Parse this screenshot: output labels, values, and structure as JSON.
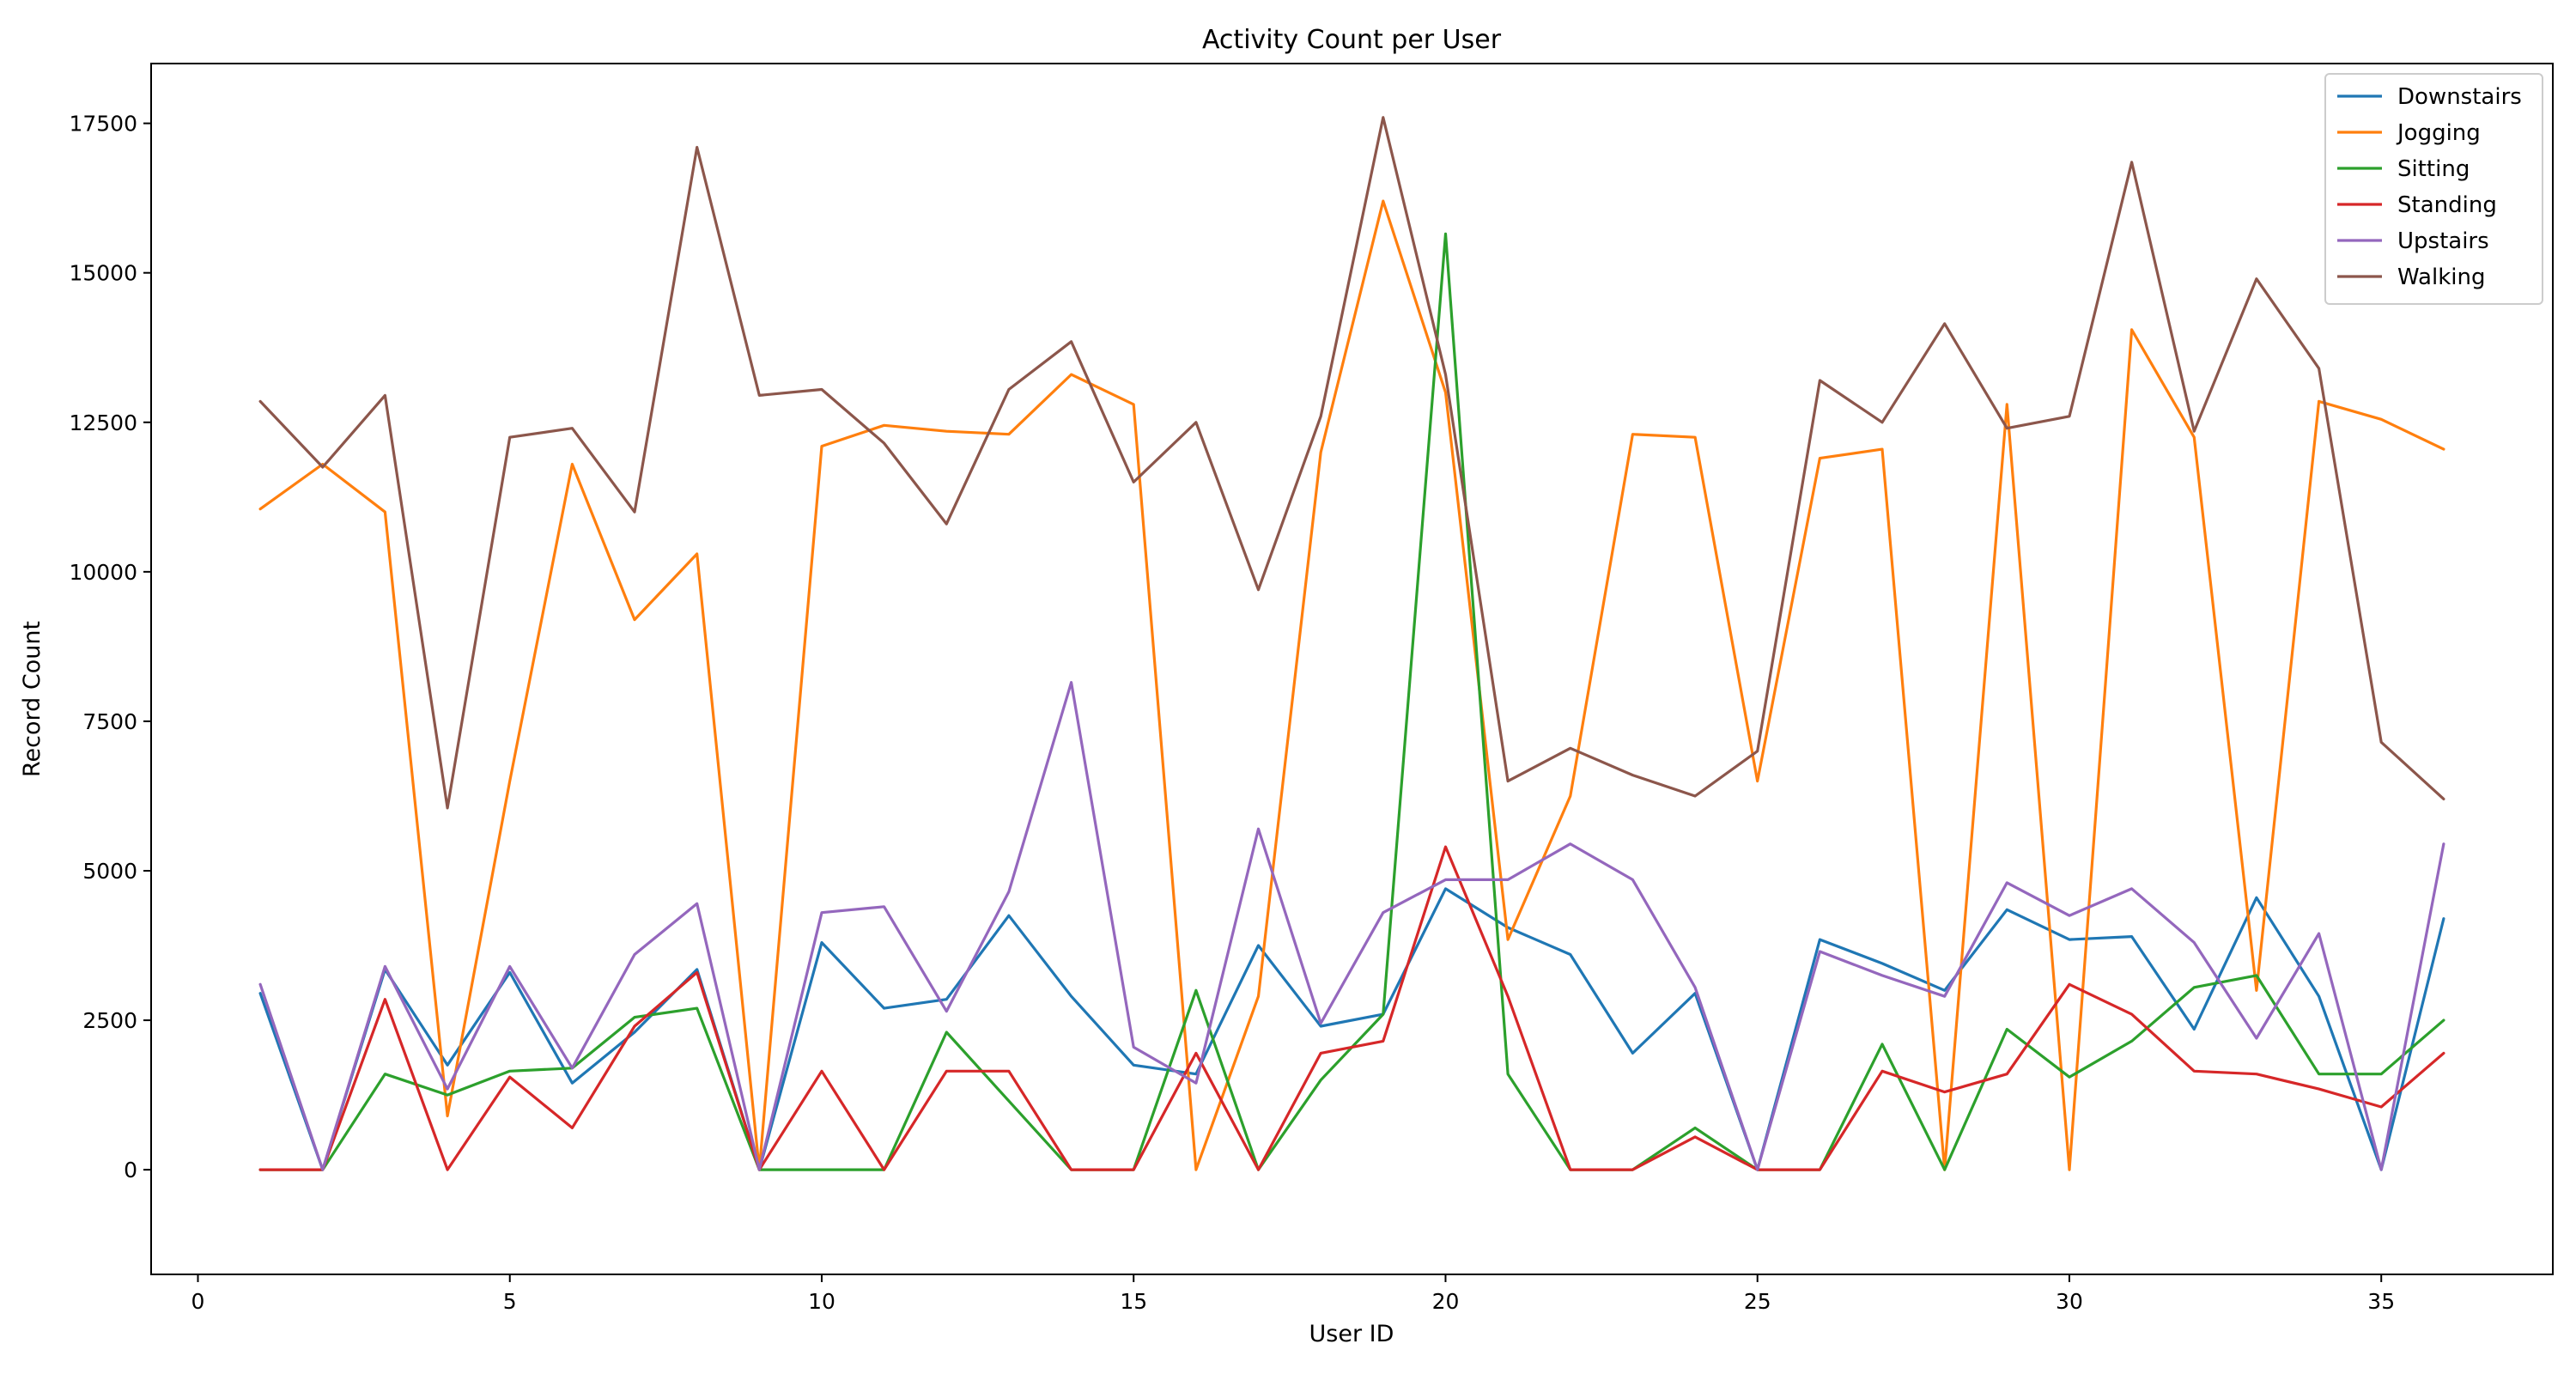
{
  "chart_data": {
    "type": "line",
    "title": "Activity Count per User",
    "xlabel": "User ID",
    "ylabel": "Record Count",
    "xlim": [
      -0.75,
      37.75
    ],
    "ylim": [
      -1750,
      18500
    ],
    "xticks": [
      0,
      5,
      10,
      15,
      20,
      25,
      30,
      35
    ],
    "yticks": [
      0,
      2500,
      5000,
      7500,
      10000,
      12500,
      15000,
      17500
    ],
    "grid": false,
    "legend_position": "top-right",
    "x": [
      1,
      2,
      3,
      4,
      5,
      6,
      7,
      8,
      9,
      10,
      11,
      12,
      13,
      14,
      15,
      16,
      17,
      18,
      19,
      20,
      21,
      22,
      23,
      24,
      25,
      26,
      27,
      28,
      29,
      30,
      31,
      32,
      33,
      34,
      35,
      36
    ],
    "series": [
      {
        "name": "Downstairs",
        "color": "#1f77b4",
        "values": [
          2950,
          0,
          3350,
          1750,
          3300,
          1450,
          2300,
          3350,
          0,
          3800,
          2700,
          2850,
          4250,
          2900,
          1750,
          1600,
          3750,
          2400,
          2600,
          4700,
          4050,
          3600,
          1950,
          2950,
          0,
          3850,
          3450,
          3000,
          4350,
          3850,
          3900,
          2350,
          4550,
          2900,
          0,
          4200
        ]
      },
      {
        "name": "Jogging",
        "color": "#ff7f0e",
        "values": [
          11050,
          11800,
          11000,
          900,
          6500,
          11800,
          9200,
          10300,
          0,
          12100,
          12450,
          12350,
          12300,
          13300,
          12800,
          0,
          2900,
          12000,
          16200,
          13000,
          3850,
          6250,
          12300,
          12250,
          6500,
          11900,
          12050,
          0,
          12800,
          0,
          14050,
          12250,
          3000,
          12850,
          12550,
          12050
        ]
      },
      {
        "name": "Sitting",
        "color": "#2ca02c",
        "values": [
          0,
          0,
          1600,
          1250,
          1650,
          1700,
          2550,
          2700,
          0,
          0,
          0,
          2300,
          1150,
          0,
          0,
          3000,
          0,
          1500,
          2600,
          15650,
          1600,
          0,
          0,
          700,
          0,
          0,
          2100,
          0,
          2350,
          1550,
          2150,
          3050,
          3250,
          1600,
          1600,
          2500
        ]
      },
      {
        "name": "Standing",
        "color": "#d62728",
        "values": [
          0,
          0,
          2850,
          0,
          1550,
          700,
          2400,
          3300,
          0,
          1650,
          0,
          1650,
          1650,
          0,
          0,
          1950,
          0,
          1950,
          2150,
          5400,
          2900,
          0,
          0,
          550,
          0,
          0,
          1650,
          1300,
          1600,
          3100,
          2600,
          1650,
          1600,
          1350,
          1050,
          1950
        ]
      },
      {
        "name": "Upstairs",
        "color": "#9467bd",
        "values": [
          3100,
          0,
          3400,
          1350,
          3400,
          1700,
          3600,
          4450,
          0,
          4300,
          4400,
          2650,
          4650,
          8150,
          2050,
          1450,
          5700,
          2450,
          4300,
          4850,
          4850,
          5450,
          4850,
          3050,
          0,
          3650,
          3250,
          2900,
          4800,
          4250,
          4700,
          3800,
          2200,
          3950,
          0,
          5450
        ]
      },
      {
        "name": "Walking",
        "color": "#8c564b",
        "values": [
          12850,
          11750,
          12950,
          6050,
          12250,
          12400,
          11000,
          17100,
          12950,
          13050,
          12150,
          10800,
          13050,
          13850,
          11500,
          12500,
          9700,
          12600,
          17600,
          13300,
          6500,
          7050,
          6600,
          6250,
          7000,
          13200,
          12500,
          14150,
          12400,
          12600,
          16850,
          12350,
          14900,
          13400,
          7150,
          6200
        ]
      }
    ]
  }
}
